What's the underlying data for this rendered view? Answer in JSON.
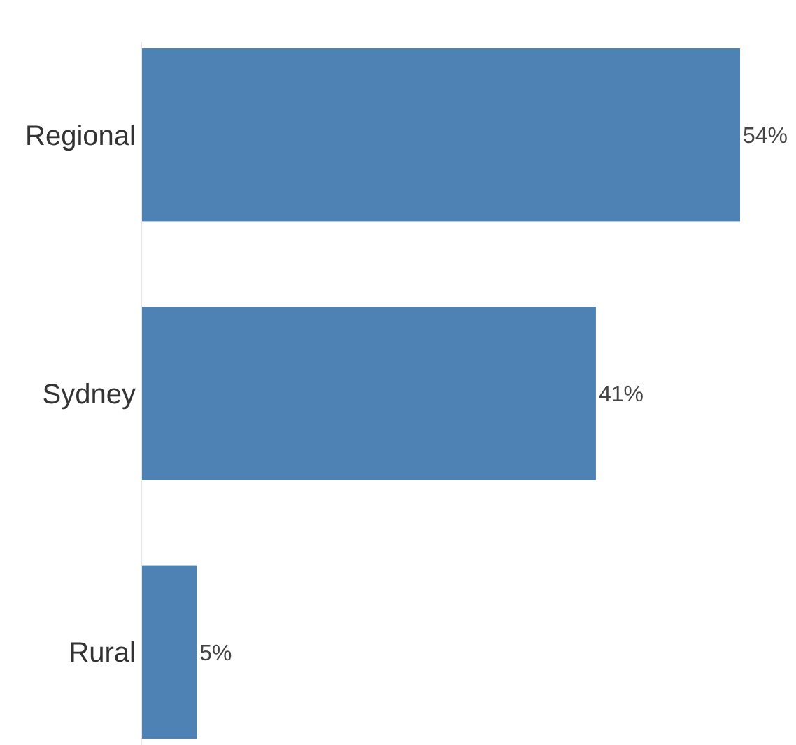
{
  "chart_data": {
    "type": "bar",
    "orientation": "horizontal",
    "categories": [
      "Regional",
      "Sydney",
      "Rural"
    ],
    "values": [
      54,
      41,
      5
    ],
    "color": "#4e81b4",
    "value_labels": [
      "54%",
      "41%",
      "5%"
    ],
    "tick_labels": "y"
  }
}
